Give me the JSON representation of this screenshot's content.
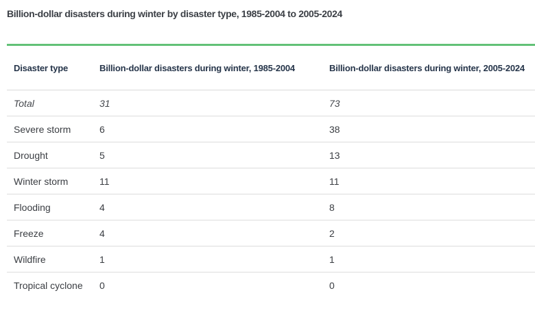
{
  "title": "Billion-dollar disasters during winter by disaster type, 1985-2004 to 2005-2024",
  "colors": {
    "accent_green": "#62c177",
    "header_text": "#26354a",
    "title_text": "#3b3f45",
    "body_text": "#3a3d42",
    "divider": "#d9d9d9",
    "background": "#ffffff"
  },
  "chart_data": {
    "type": "table",
    "title": "Billion-dollar disasters during winter by disaster type, 1985-2004 to 2005-2024",
    "columns": [
      "Disaster type",
      "Billion-dollar disasters during winter, 1985-2004",
      "Billion-dollar disasters during winter, 2005-2024"
    ],
    "rows": [
      [
        "Total",
        31,
        73
      ],
      [
        "Severe storm",
        6,
        38
      ],
      [
        "Drought",
        5,
        13
      ],
      [
        "Winter storm",
        11,
        11
      ],
      [
        "Flooding",
        4,
        8
      ],
      [
        "Freeze",
        4,
        2
      ],
      [
        "Wildfire",
        1,
        1
      ],
      [
        "Tropical cyclone",
        0,
        0
      ]
    ],
    "layout": {
      "total_row_italic": true,
      "grid": "horizontal row dividers only",
      "legend": "none"
    }
  }
}
